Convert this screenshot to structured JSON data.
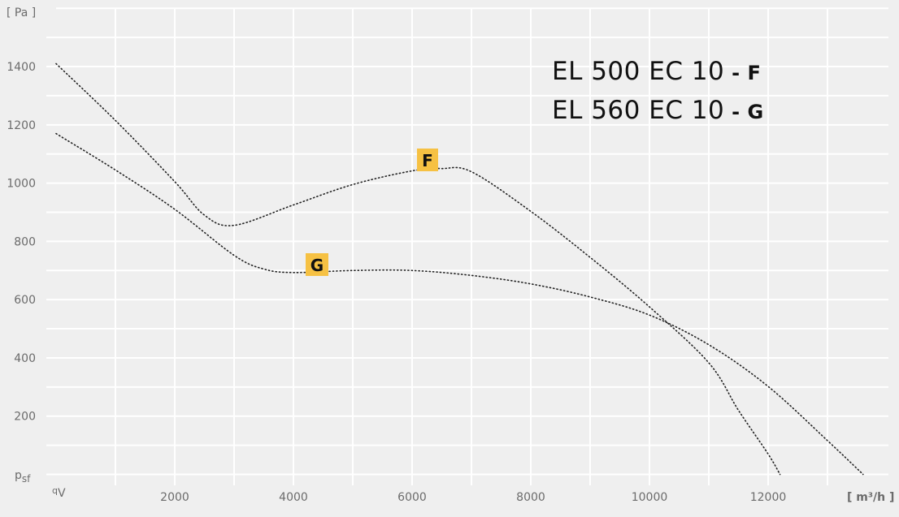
{
  "chart_data": {
    "type": "line",
    "title_lines": [
      {
        "model": "EL 500 EC 10",
        "sep": " - ",
        "curve": "F"
      },
      {
        "model": "EL 560 EC 10",
        "sep": " - ",
        "curve": "G"
      }
    ],
    "ylabel_unit": "[ Pa ]",
    "ylabel_symbol": "p",
    "ylabel_sub": "sf",
    "xlabel_symbol": "q",
    "xlabel_sub": "V",
    "xlabel_unit": "[ m³/h ]",
    "xlim": [
      0,
      14000
    ],
    "ylim": [
      0,
      1600
    ],
    "x_ticks": [
      "2000",
      "4000",
      "6000",
      "8000",
      "10000",
      "12000"
    ],
    "y_ticks": [
      "200",
      "400",
      "600",
      "800",
      "1000",
      "1200",
      "1400"
    ],
    "grid": true,
    "line_style": "dotted",
    "badge_color": "#f6c143",
    "series": [
      {
        "name": "F",
        "points": [
          [
            0,
            1410
          ],
          [
            1000,
            1215
          ],
          [
            2000,
            1005
          ],
          [
            2500,
            890
          ],
          [
            3000,
            855
          ],
          [
            4000,
            925
          ],
          [
            5000,
            995
          ],
          [
            6000,
            1042
          ],
          [
            6500,
            1050
          ],
          [
            7000,
            1039
          ],
          [
            8000,
            903
          ],
          [
            9000,
            745
          ],
          [
            10000,
            575
          ],
          [
            11000,
            383
          ],
          [
            11500,
            220
          ],
          [
            12000,
            70
          ],
          [
            12200,
            0
          ]
        ]
      },
      {
        "name": "G",
        "points": [
          [
            0,
            1170
          ],
          [
            1000,
            1045
          ],
          [
            2000,
            910
          ],
          [
            3000,
            752
          ],
          [
            3500,
            705
          ],
          [
            4000,
            693
          ],
          [
            5000,
            700
          ],
          [
            6000,
            700
          ],
          [
            7000,
            683
          ],
          [
            8000,
            654
          ],
          [
            9000,
            609
          ],
          [
            10000,
            547
          ],
          [
            11000,
            445
          ],
          [
            12000,
            302
          ],
          [
            13000,
            116
          ],
          [
            13600,
            0
          ]
        ]
      }
    ]
  }
}
